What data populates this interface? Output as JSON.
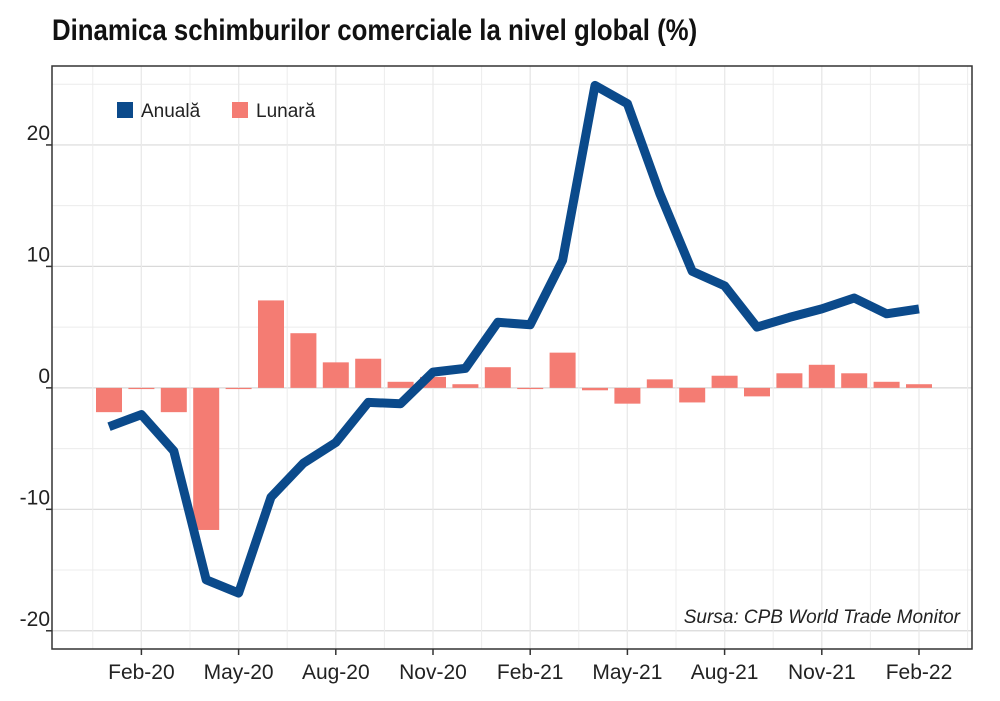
{
  "chart_data": {
    "type": "bar+line",
    "title": "Dinamica schimburilor comerciale la nivel global (%)",
    "x": [
      "Ian-20",
      "Feb-20",
      "Mar-20",
      "Apr-20",
      "May-20",
      "Iun-20",
      "Iul-20",
      "Aug-20",
      "Sep-20",
      "Oct-20",
      "Nov-20",
      "Dec-20",
      "Ian-21",
      "Feb-21",
      "Mar-21",
      "Apr-21",
      "May-21",
      "Iun-21",
      "Iul-21",
      "Aug-21",
      "Sep-21",
      "Oct-21",
      "Nov-21",
      "Dec-21",
      "Ian-22",
      "Feb-22"
    ],
    "x_tick_labels": [
      "Feb-20",
      "May-20",
      "Aug-20",
      "Nov-20",
      "Feb-21",
      "May-21",
      "Aug-21",
      "Nov-21",
      "Feb-22"
    ],
    "x_tick_indices": [
      1,
      4,
      7,
      10,
      13,
      16,
      19,
      22,
      25
    ],
    "series": [
      {
        "name": "Anuală",
        "type": "line",
        "color": "#0b4a8b",
        "values": [
          -3.2,
          -2.2,
          -5.2,
          -15.8,
          -16.9,
          -9.0,
          -6.2,
          -4.5,
          -1.2,
          -1.3,
          1.3,
          1.6,
          5.4,
          5.2,
          10.5,
          24.9,
          23.4,
          16.0,
          9.6,
          8.4,
          5.0,
          5.8,
          6.5,
          7.4,
          6.1,
          6.5
        ]
      },
      {
        "name": "Lunară",
        "type": "bar",
        "color": "#f47c73",
        "values": [
          -2.0,
          -0.1,
          -2.0,
          -11.7,
          -0.1,
          7.2,
          4.5,
          2.1,
          2.4,
          0.5,
          0.9,
          0.3,
          1.7,
          -0.1,
          2.9,
          -0.2,
          -1.3,
          0.7,
          -1.2,
          1.0,
          -0.7,
          1.2,
          1.9,
          1.2,
          0.5,
          0.3
        ]
      }
    ],
    "y_ticks": [
      -20,
      -10,
      0,
      10,
      20
    ],
    "y_tick_labels": [
      "-20",
      "-10",
      "0",
      "10",
      "20"
    ],
    "ylim": [
      -21.5,
      26.5
    ],
    "grid": true,
    "legend_position": "top-left",
    "source": "Sursa: CPB World Trade Monitor"
  }
}
